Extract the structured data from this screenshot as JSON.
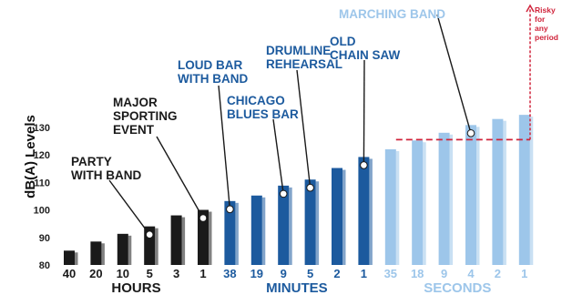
{
  "chart_data": {
    "type": "bar",
    "ylabel": "dB(A) Levels",
    "ylim": [
      80,
      135
    ],
    "yticks": [
      80,
      90,
      100,
      110,
      120,
      130
    ],
    "categories": [
      "40",
      "20",
      "10",
      "5",
      "3",
      "1",
      "38",
      "19",
      "9",
      "5",
      "2",
      "1",
      "35",
      "18",
      "9",
      "4",
      "2",
      "1"
    ],
    "values": [
      85.2,
      88.5,
      91.3,
      94.0,
      98.0,
      100.0,
      103.2,
      105.2,
      108.8,
      111.0,
      115.2,
      119.2,
      122.0,
      125.2,
      128.0,
      130.8,
      133.0,
      134.5
    ],
    "groups": [
      {
        "name": "HOURS",
        "start": 0,
        "end": 5,
        "color": "#1a1a1a"
      },
      {
        "name": "MINUTES",
        "start": 6,
        "end": 11,
        "color": "#1c5a9e"
      },
      {
        "name": "SECONDS",
        "start": 12,
        "end": 17,
        "color": "#9dc6ea"
      }
    ],
    "threshold": {
      "value": 125.5,
      "label_lines": [
        "Risky",
        "for",
        "any",
        "period"
      ],
      "color": "#d0243b"
    },
    "annotations": [
      {
        "lines": [
          "PARTY",
          "WITH BAND"
        ],
        "bar": 3,
        "color": "#1a1a1a"
      },
      {
        "lines": [
          "MAJOR",
          "SPORTING",
          "EVENT"
        ],
        "bar": 5,
        "color": "#1a1a1a"
      },
      {
        "lines": [
          "LOUD BAR",
          "WITH BAND"
        ],
        "bar": 6,
        "color": "#1c5a9e"
      },
      {
        "lines": [
          "CHICAGO",
          "BLUES BAR"
        ],
        "bar": 8,
        "color": "#1c5a9e"
      },
      {
        "lines": [
          "DRUMLINE",
          "REHEARSAL"
        ],
        "bar": 9,
        "color": "#1c5a9e"
      },
      {
        "lines": [
          "OLD",
          "CHAIN SAW"
        ],
        "bar": 11,
        "color": "#1c5a9e"
      },
      {
        "lines": [
          "MARCHING BAND"
        ],
        "bar": 15,
        "color": "#9dc6ea"
      }
    ]
  }
}
